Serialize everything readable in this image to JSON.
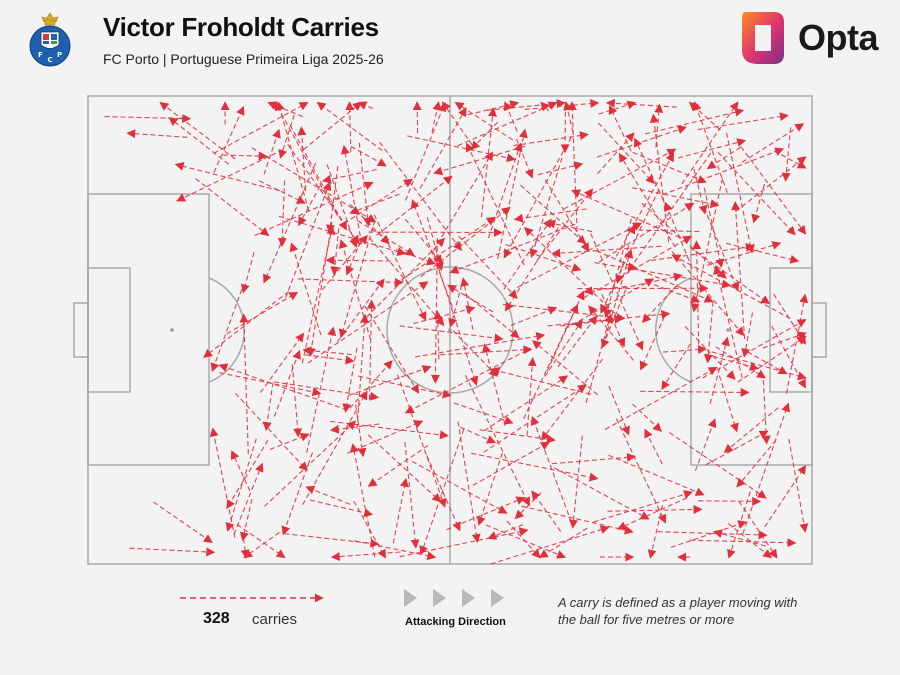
{
  "header": {
    "title": "Victor Froholdt Carries",
    "subtitle": "FC Porto | Portuguese Primeira Liga 2025-26",
    "brand": "Opta",
    "crest_text": [
      "F",
      "C",
      "P"
    ]
  },
  "colors": {
    "carry": "#e0303c",
    "pitch_line": "#a9a9a9",
    "background": "#f3f3f3",
    "opta_orange": "#f7901e",
    "opta_purple": "#7a2e8c",
    "crest_blue": "#1f5fb0"
  },
  "legend": {
    "count": "328",
    "unit": "carries",
    "direction_label": "Attacking Direction",
    "note": "A carry is defined as a player moving with the ball for five metres or more"
  },
  "chart_data": {
    "type": "pitch-carry-map",
    "attacking_direction": "left-to-right",
    "total_carries": 328,
    "pitch_dimensions_m": [
      105,
      68
    ],
    "sample_carries_m": [
      [
        2.4,
        3.0,
        14.7,
        3.3
      ],
      [
        14.4,
        6.0,
        5.8,
        5.4
      ],
      [
        15.6,
        12.0,
        26.1,
        20.2
      ],
      [
        6.0,
        65.7,
        18.2,
        66.3
      ],
      [
        9.5,
        59.0,
        17.9,
        64.8
      ],
      [
        21.3,
        64.2,
        18.1,
        48.4
      ],
      [
        26.1,
        50.0,
        20.2,
        59.8
      ],
      [
        29.1,
        28.4,
        16.9,
        37.9
      ],
      [
        27.7,
        17.5,
        45.9,
        22.9
      ],
      [
        45.2,
        33.4,
        60.0,
        35.3
      ],
      [
        37.6,
        51.9,
        48.4,
        47.3
      ],
      [
        28.5,
        63.6,
        42.0,
        65.1
      ],
      [
        32.2,
        58.7,
        41.1,
        60.8
      ],
      [
        52.0,
        63.0,
        63.2,
        58.4
      ],
      [
        58.4,
        68.0,
        75.4,
        62.7
      ],
      [
        62.9,
        59.6,
        78.9,
        63.3
      ],
      [
        75.5,
        52.2,
        89.2,
        57.9
      ],
      [
        82.6,
        63.3,
        98.3,
        63.8
      ],
      [
        98.3,
        65.4,
        90.9,
        63.3
      ],
      [
        99.8,
        50.0,
        94.2,
        56.7
      ],
      [
        100.1,
        45.3,
        92.4,
        51.7
      ],
      [
        89.8,
        24.6,
        100.3,
        21.4
      ],
      [
        93.9,
        16.8,
        104.0,
        8.9
      ],
      [
        79.1,
        38.4,
        72.7,
        30.6
      ],
      [
        68.2,
        19.1,
        60.6,
        31.1
      ],
      [
        60.3,
        28.1,
        67.1,
        18.0
      ],
      [
        51.1,
        37.6,
        64.2,
        36.8
      ],
      [
        56.8,
        48.5,
        67.6,
        50.0
      ],
      [
        61.7,
        7.2,
        72.4,
        5.6
      ],
      [
        79.0,
        8.2,
        89.5,
        12.5
      ],
      [
        80.8,
        5.5,
        94.9,
        2.1
      ],
      [
        85.6,
        9.0,
        95.2,
        6.5
      ],
      [
        73.1,
        19.7,
        66.7,
        18.4
      ],
      [
        39.2,
        40.7,
        52.5,
        43.5
      ],
      [
        39.1,
        18.1,
        47.2,
        23.1
      ],
      [
        46.3,
        5.8,
        61.8,
        9.2
      ],
      [
        25.0,
        43.1,
        31.2,
        34.6
      ],
      [
        31.5,
        37.6,
        38.4,
        38.5
      ],
      [
        19.1,
        40.2,
        33.6,
        43.2
      ],
      [
        73.3,
        61.9,
        87.5,
        57.6
      ]
    ]
  }
}
